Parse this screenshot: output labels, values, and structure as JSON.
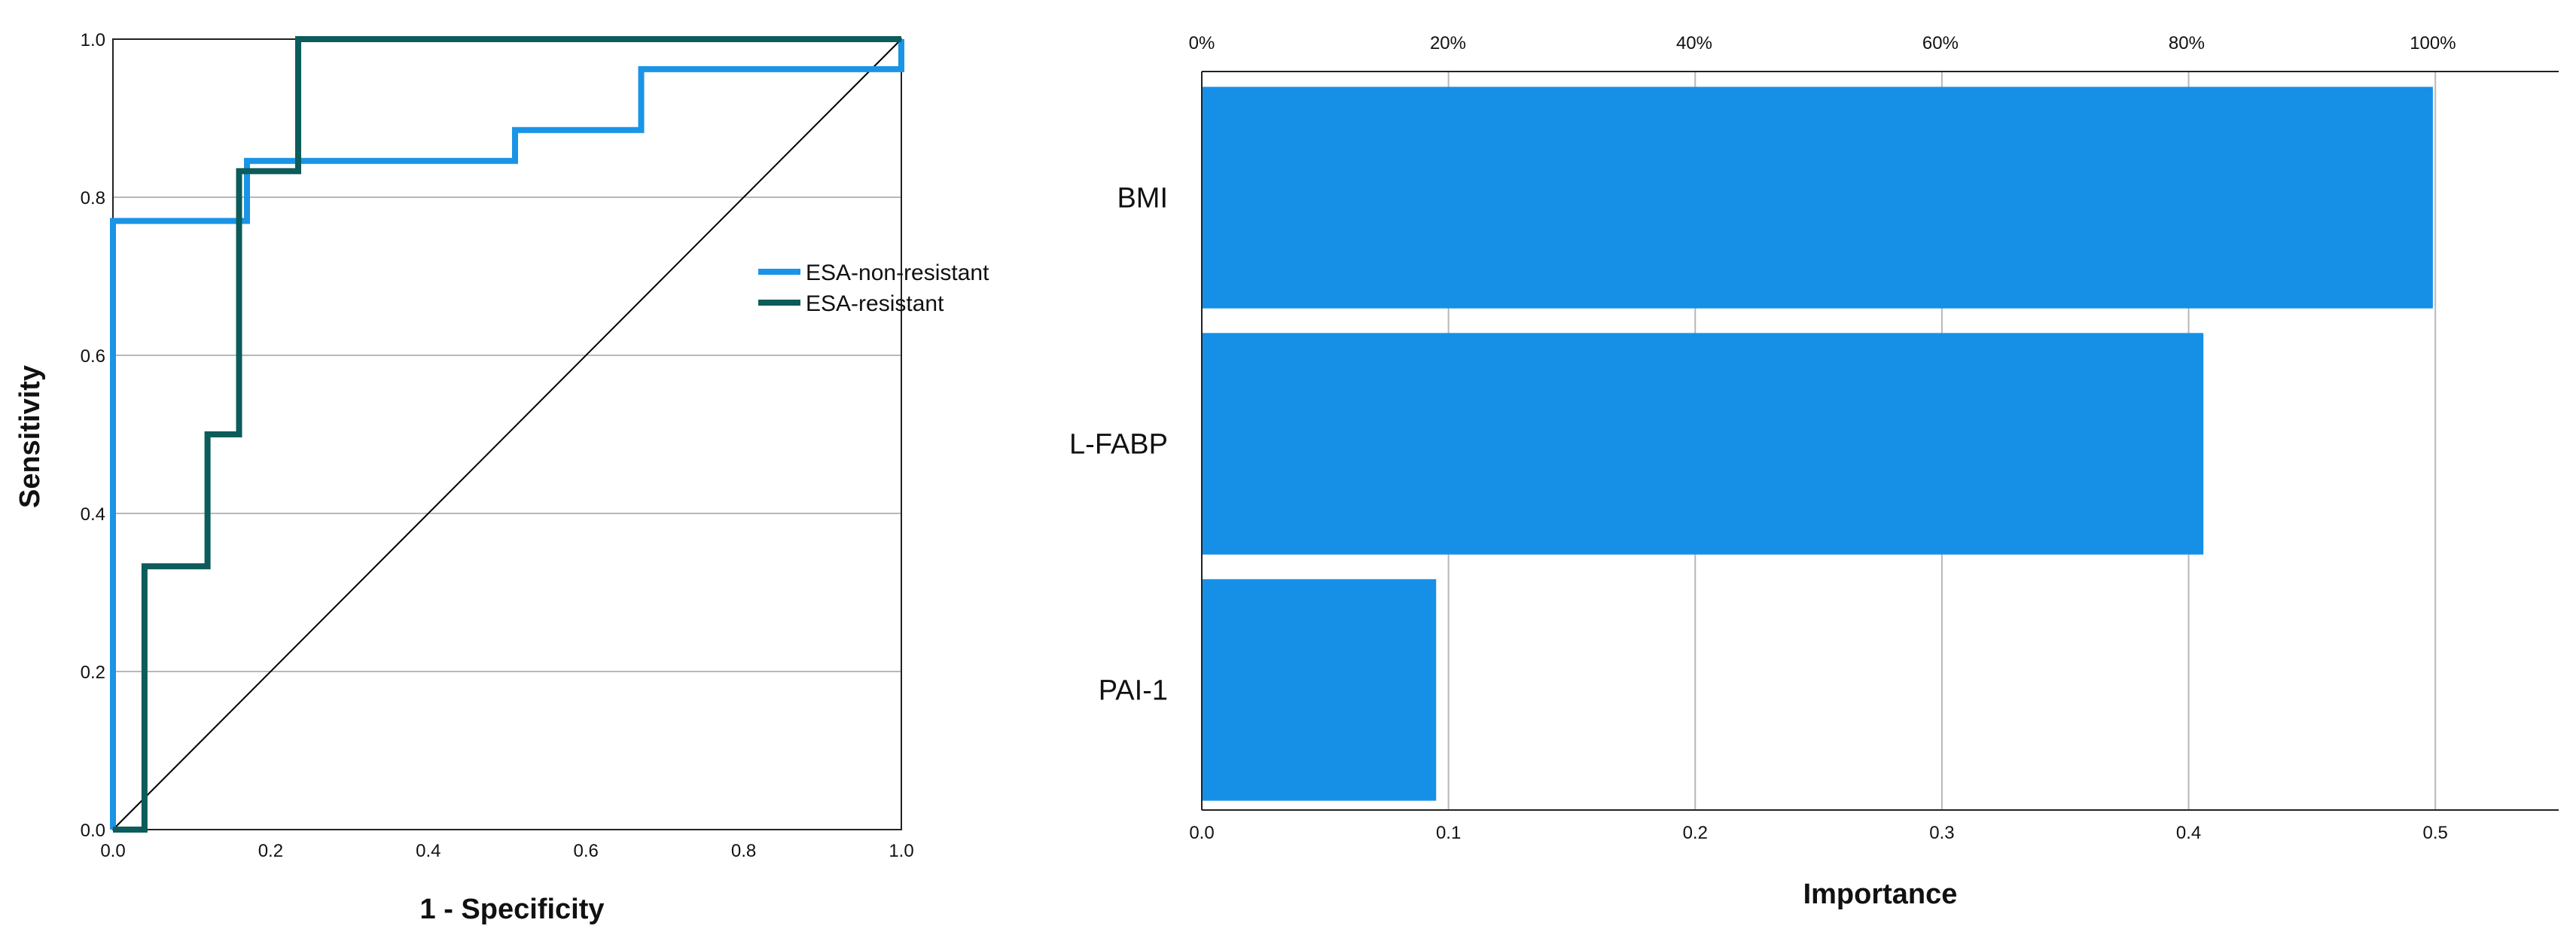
{
  "chart_data": [
    {
      "type": "line",
      "xlabel": "1 - Specificity",
      "ylabel": "Sensitivity",
      "xlim": [
        0,
        1
      ],
      "ylim": [
        0,
        1
      ],
      "x_ticks": [
        "0.0",
        "0.2",
        "0.4",
        "0.6",
        "0.8",
        "1.0"
      ],
      "y_ticks": [
        "0.0",
        "0.2",
        "0.4",
        "0.6",
        "0.8",
        "1.0"
      ],
      "grid": "horizontal",
      "legend": "right",
      "reference_line": {
        "x": [
          0,
          1
        ],
        "y": [
          0,
          1
        ],
        "color": "#000000"
      },
      "series": [
        {
          "name": "ESA-non-resistant",
          "color": "#1a94e6",
          "x": [
            0,
            0,
            0.17,
            0.17,
            0.51,
            0.51,
            0.67,
            0.67,
            1.0,
            1.0
          ],
          "y": [
            0,
            0.77,
            0.77,
            0.846,
            0.846,
            0.885,
            0.885,
            0.962,
            0.962,
            1.0
          ]
        },
        {
          "name": "ESA-resistant",
          "color": "#0b5c5a",
          "x": [
            0,
            0.04,
            0.04,
            0.12,
            0.12,
            0.16,
            0.16,
            0.235,
            0.235,
            1.0
          ],
          "y": [
            0,
            0,
            0.333,
            0.333,
            0.5,
            0.5,
            0.833,
            0.833,
            1.0,
            1.0
          ]
        }
      ]
    },
    {
      "type": "bar",
      "orientation": "horizontal",
      "xlabel": "Importance",
      "categories": [
        "BMI",
        "L-FABP",
        "PAI-1"
      ],
      "values": [
        0.499,
        0.406,
        0.095
      ],
      "percent_values": [
        100,
        81.4,
        19.0
      ],
      "xlim": [
        0,
        0.55
      ],
      "bottom_ticks": [
        "0.0",
        "0.1",
        "0.2",
        "0.3",
        "0.4",
        "0.5"
      ],
      "top_ticks": [
        "0%",
        "20%",
        "40%",
        "60%",
        "80%",
        "100%"
      ],
      "grid": "vertical",
      "bar_color": "#1590e6"
    }
  ]
}
